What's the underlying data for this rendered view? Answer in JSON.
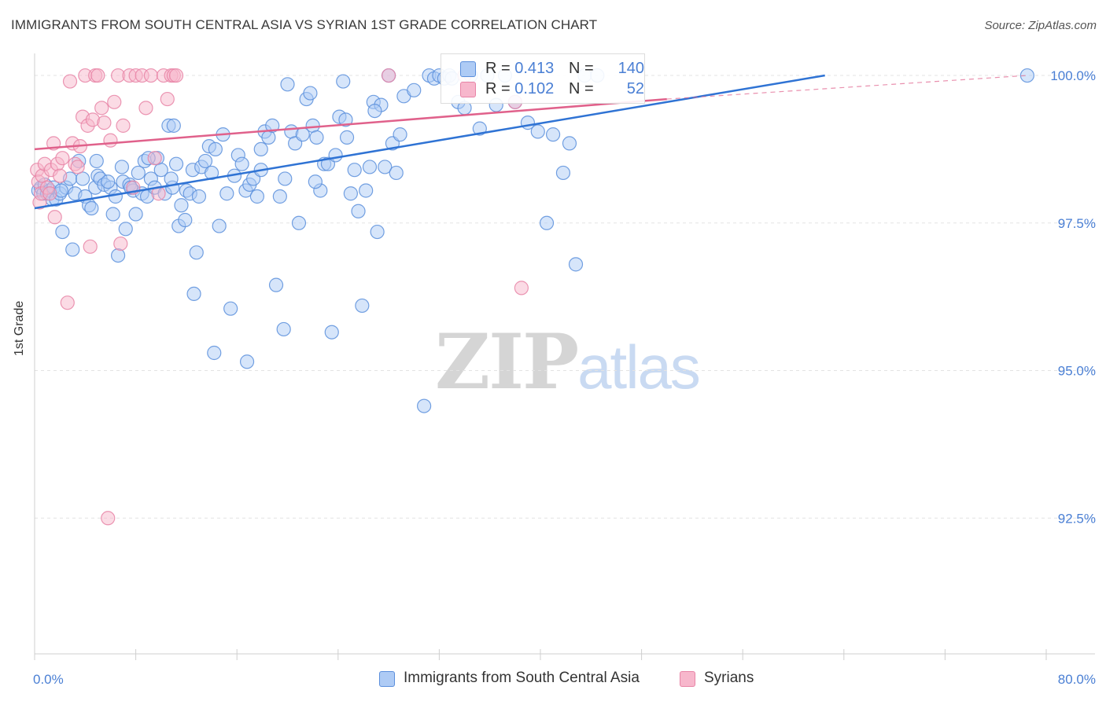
{
  "title": "IMMIGRANTS FROM SOUTH CENTRAL ASIA VS SYRIAN 1ST GRADE CORRELATION CHART",
  "source": "Source: ZipAtlas.com",
  "watermark": {
    "zip": "ZIP",
    "atlas": "atlas"
  },
  "colors": {
    "blue_fill": "#aecbf5",
    "blue_stroke": "#5b8fdc",
    "blue_line": "#2f73d4",
    "pink_fill": "#f7b7cc",
    "pink_stroke": "#e884a6",
    "pink_line": "#e0618b",
    "tick_text": "#4a7fd4",
    "grid": "#e3e3e3"
  },
  "legend_top": {
    "rows": [
      {
        "series": "blue",
        "r_label": "R = ",
        "r_value": "0.413",
        "n_label": "N = ",
        "n_value": "140"
      },
      {
        "series": "pink",
        "r_label": "R = ",
        "r_value": "0.102",
        "n_label": "N = ",
        "n_value": "52"
      }
    ]
  },
  "legend_bottom": {
    "items": [
      {
        "series": "blue",
        "label": "Immigrants from South Central Asia"
      },
      {
        "series": "pink",
        "label": "Syrians"
      }
    ]
  },
  "chart_data": {
    "type": "scatter",
    "title": "IMMIGRANTS FROM SOUTH CENTRAL ASIA VS SYRIAN 1ST GRADE CORRELATION CHART",
    "xlabel": "",
    "ylabel": "1st Grade",
    "xlim": [
      0,
      80
    ],
    "ylim": [
      90.2,
      100.4
    ],
    "x_tick_labels": [
      "0.0%",
      "80.0%"
    ],
    "y_ticks": [
      92.5,
      95.0,
      97.5,
      100.0
    ],
    "y_tick_labels": [
      "92.5%",
      "95.0%",
      "97.5%",
      "100.0%"
    ],
    "grid": true,
    "series": [
      {
        "name": "Immigrants from South Central Asia",
        "color": "blue",
        "R": 0.413,
        "N": 140,
        "trend": {
          "x0": 0,
          "y0": 97.75,
          "x1": 62.5,
          "y1": 100.0
        },
        "points": [
          [
            0.3,
            98.05
          ],
          [
            0.5,
            98.1
          ],
          [
            0.7,
            98.0
          ],
          [
            0.8,
            98.15
          ],
          [
            1.0,
            98.0
          ],
          [
            1.2,
            98.05
          ],
          [
            1.4,
            97.9
          ],
          [
            1.5,
            98.1
          ],
          [
            1.7,
            97.9
          ],
          [
            2.0,
            98.0
          ],
          [
            2.2,
            97.35
          ],
          [
            2.5,
            98.1
          ],
          [
            2.8,
            98.25
          ],
          [
            3.0,
            97.05
          ],
          [
            3.2,
            98.0
          ],
          [
            3.5,
            98.55
          ],
          [
            4.0,
            97.95
          ],
          [
            4.3,
            97.8
          ],
          [
            4.5,
            97.75
          ],
          [
            4.8,
            98.1
          ],
          [
            5.0,
            98.3
          ],
          [
            5.2,
            98.25
          ],
          [
            5.5,
            98.15
          ],
          [
            6.0,
            98.1
          ],
          [
            6.2,
            97.65
          ],
          [
            6.4,
            97.95
          ],
          [
            6.6,
            96.95
          ],
          [
            7.0,
            98.2
          ],
          [
            7.2,
            97.4
          ],
          [
            7.5,
            98.15
          ],
          [
            7.8,
            98.05
          ],
          [
            8.0,
            97.65
          ],
          [
            8.2,
            98.35
          ],
          [
            8.5,
            98.0
          ],
          [
            8.7,
            98.55
          ],
          [
            8.9,
            97.95
          ],
          [
            9.2,
            98.25
          ],
          [
            9.5,
            98.1
          ],
          [
            9.7,
            98.6
          ],
          [
            10.0,
            98.4
          ],
          [
            10.3,
            98.0
          ],
          [
            10.6,
            99.15
          ],
          [
            10.9,
            98.1
          ],
          [
            11.0,
            99.15
          ],
          [
            11.2,
            98.5
          ],
          [
            11.4,
            97.45
          ],
          [
            11.6,
            97.8
          ],
          [
            11.9,
            97.55
          ],
          [
            12.0,
            98.05
          ],
          [
            12.3,
            98.0
          ],
          [
            12.5,
            98.4
          ],
          [
            12.8,
            97.0
          ],
          [
            13.0,
            97.95
          ],
          [
            13.2,
            98.45
          ],
          [
            13.5,
            98.55
          ],
          [
            13.8,
            98.8
          ],
          [
            14.0,
            98.35
          ],
          [
            14.3,
            98.75
          ],
          [
            14.6,
            97.45
          ],
          [
            14.9,
            99.0
          ],
          [
            15.2,
            98.0
          ],
          [
            15.5,
            96.05
          ],
          [
            15.8,
            98.3
          ],
          [
            16.1,
            98.65
          ],
          [
            16.4,
            98.5
          ],
          [
            16.7,
            98.05
          ],
          [
            17.0,
            98.15
          ],
          [
            17.3,
            98.25
          ],
          [
            17.6,
            97.95
          ],
          [
            17.9,
            98.4
          ],
          [
            18.2,
            99.05
          ],
          [
            18.5,
            98.95
          ],
          [
            18.8,
            99.15
          ],
          [
            19.1,
            96.45
          ],
          [
            19.4,
            97.95
          ],
          [
            19.7,
            95.7
          ],
          [
            20.0,
            99.85
          ],
          [
            20.3,
            99.05
          ],
          [
            20.6,
            98.85
          ],
          [
            20.9,
            97.5
          ],
          [
            21.2,
            99.0
          ],
          [
            21.5,
            99.6
          ],
          [
            21.8,
            99.7
          ],
          [
            22.0,
            99.15
          ],
          [
            22.3,
            98.95
          ],
          [
            22.6,
            98.05
          ],
          [
            22.9,
            98.5
          ],
          [
            23.2,
            98.5
          ],
          [
            23.5,
            95.65
          ],
          [
            23.8,
            98.65
          ],
          [
            24.1,
            99.3
          ],
          [
            24.4,
            99.9
          ],
          [
            24.7,
            98.95
          ],
          [
            25.0,
            98.0
          ],
          [
            25.3,
            98.4
          ],
          [
            25.6,
            97.7
          ],
          [
            25.9,
            96.1
          ],
          [
            26.2,
            98.05
          ],
          [
            26.5,
            98.45
          ],
          [
            26.8,
            99.55
          ],
          [
            27.1,
            97.35
          ],
          [
            27.4,
            99.5
          ],
          [
            27.7,
            98.45
          ],
          [
            28.0,
            100.0
          ],
          [
            28.3,
            98.85
          ],
          [
            28.6,
            98.35
          ],
          [
            28.9,
            99.0
          ],
          [
            29.2,
            99.65
          ],
          [
            30.0,
            99.75
          ],
          [
            30.8,
            94.4
          ],
          [
            31.2,
            100.0
          ],
          [
            31.6,
            99.95
          ],
          [
            32.0,
            100.0
          ],
          [
            32.4,
            99.95
          ],
          [
            32.8,
            100.0
          ],
          [
            33.5,
            99.55
          ],
          [
            34.0,
            99.45
          ],
          [
            34.5,
            100.0
          ],
          [
            35.2,
            99.1
          ],
          [
            35.8,
            100.0
          ],
          [
            36.5,
            99.5
          ],
          [
            37.2,
            100.0
          ],
          [
            38.0,
            99.55
          ],
          [
            39.0,
            99.2
          ],
          [
            39.8,
            99.05
          ],
          [
            40.5,
            97.5
          ],
          [
            41.0,
            99.0
          ],
          [
            41.8,
            98.35
          ],
          [
            42.3,
            98.85
          ],
          [
            42.8,
            96.8
          ],
          [
            43.5,
            100.0
          ],
          [
            44.5,
            100.0
          ],
          [
            12.6,
            96.3
          ],
          [
            16.8,
            95.15
          ],
          [
            14.2,
            95.3
          ],
          [
            4.9,
            98.55
          ],
          [
            6.9,
            98.45
          ],
          [
            9.0,
            98.6
          ],
          [
            19.8,
            98.25
          ],
          [
            22.2,
            98.2
          ],
          [
            26.9,
            99.4
          ],
          [
            33.0,
            99.95
          ],
          [
            2.1,
            98.05
          ],
          [
            3.8,
            98.25
          ],
          [
            5.8,
            98.2
          ],
          [
            7.6,
            98.1
          ],
          [
            10.8,
            98.25
          ],
          [
            17.9,
            98.75
          ],
          [
            24.6,
            99.25
          ],
          [
            78.5,
            100.0
          ]
        ]
      },
      {
        "name": "Syrians",
        "color": "pink",
        "R": 0.102,
        "N": 52,
        "trend": {
          "x0": 0,
          "y0": 98.75,
          "x1": 50,
          "y1": 99.6
        },
        "trend_dashed": {
          "x0": 50,
          "y0": 99.6,
          "x1": 78.5,
          "y1": 100.0
        },
        "points": [
          [
            0.2,
            98.4
          ],
          [
            0.3,
            98.2
          ],
          [
            0.4,
            97.85
          ],
          [
            0.5,
            98.0
          ],
          [
            0.6,
            98.3
          ],
          [
            0.8,
            98.5
          ],
          [
            1.0,
            98.1
          ],
          [
            1.2,
            98.0
          ],
          [
            1.3,
            98.4
          ],
          [
            1.5,
            98.85
          ],
          [
            1.6,
            97.6
          ],
          [
            1.8,
            98.5
          ],
          [
            2.0,
            98.3
          ],
          [
            2.2,
            98.6
          ],
          [
            2.6,
            96.15
          ],
          [
            2.8,
            99.9
          ],
          [
            3.0,
            98.85
          ],
          [
            3.2,
            98.5
          ],
          [
            3.4,
            98.45
          ],
          [
            3.6,
            98.8
          ],
          [
            3.8,
            99.3
          ],
          [
            4.0,
            100.0
          ],
          [
            4.2,
            99.15
          ],
          [
            4.4,
            97.1
          ],
          [
            4.6,
            99.25
          ],
          [
            4.8,
            100.0
          ],
          [
            5.0,
            100.0
          ],
          [
            5.3,
            99.45
          ],
          [
            5.5,
            99.2
          ],
          [
            5.8,
            92.5
          ],
          [
            6.0,
            98.9
          ],
          [
            6.3,
            99.55
          ],
          [
            6.6,
            100.0
          ],
          [
            6.8,
            97.15
          ],
          [
            7.0,
            99.15
          ],
          [
            7.5,
            100.0
          ],
          [
            7.8,
            98.1
          ],
          [
            8.0,
            100.0
          ],
          [
            8.5,
            100.0
          ],
          [
            8.8,
            99.45
          ],
          [
            9.2,
            100.0
          ],
          [
            9.5,
            98.6
          ],
          [
            9.8,
            98.0
          ],
          [
            10.2,
            100.0
          ],
          [
            10.5,
            99.6
          ],
          [
            10.8,
            100.0
          ],
          [
            11.0,
            100.0
          ],
          [
            11.2,
            100.0
          ],
          [
            28.0,
            100.0
          ],
          [
            34.0,
            100.0
          ],
          [
            38.0,
            99.55
          ],
          [
            38.5,
            96.4
          ]
        ]
      }
    ]
  }
}
